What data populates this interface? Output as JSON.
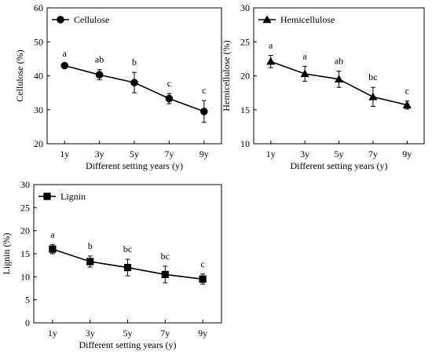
{
  "chart_data": [
    {
      "type": "line",
      "categories": [
        "1y",
        "3y",
        "5y",
        "7y",
        "9y"
      ],
      "xlabel": "Different setting years (y)",
      "ylabel": "Cellulose (%)",
      "ylim": [
        20,
        60
      ],
      "yticks": [
        "20",
        "30",
        "40",
        "50",
        "60"
      ],
      "marker": "circle",
      "legend_position": "top-left",
      "grid": false,
      "series": [
        {
          "name": "Cellulose",
          "values": [
            43.0,
            40.3,
            38.0,
            33.3,
            29.5
          ],
          "errors": [
            0.6,
            1.5,
            3.0,
            1.5,
            3.2
          ]
        }
      ],
      "significance": [
        "a",
        "ab",
        "b",
        "c",
        "c"
      ]
    },
    {
      "type": "line",
      "categories": [
        "1y",
        "3y",
        "5y",
        "7y",
        "9y"
      ],
      "xlabel": "Different setting years (y)",
      "ylabel": "Hemicellulose (%)",
      "ylim": [
        10,
        30
      ],
      "yticks": [
        "10",
        "15",
        "20",
        "25",
        "30"
      ],
      "marker": "triangle",
      "legend_position": "top-left",
      "grid": false,
      "series": [
        {
          "name": "Hemicellulose",
          "values": [
            22.1,
            20.3,
            19.5,
            16.9,
            15.7
          ],
          "errors": [
            0.9,
            1.1,
            1.2,
            1.4,
            0.6
          ]
        }
      ],
      "significance": [
        "a",
        "a",
        "ab",
        "bc",
        "c"
      ]
    },
    {
      "type": "line",
      "categories": [
        "1y",
        "3y",
        "5y",
        "7y",
        "9y"
      ],
      "xlabel": "Different setting years (y)",
      "ylabel": "Lignin (%)",
      "ylim": [
        0,
        30
      ],
      "yticks": [
        "0",
        "5",
        "10",
        "15",
        "20",
        "25",
        "30"
      ],
      "marker": "square",
      "legend_position": "top-left",
      "grid": false,
      "series": [
        {
          "name": "Lignin",
          "values": [
            16.0,
            13.3,
            12.0,
            10.5,
            9.5
          ],
          "errors": [
            1.0,
            1.2,
            1.8,
            1.8,
            1.1
          ]
        }
      ],
      "significance": [
        "a",
        "b",
        "bc",
        "bc",
        "c"
      ]
    }
  ]
}
